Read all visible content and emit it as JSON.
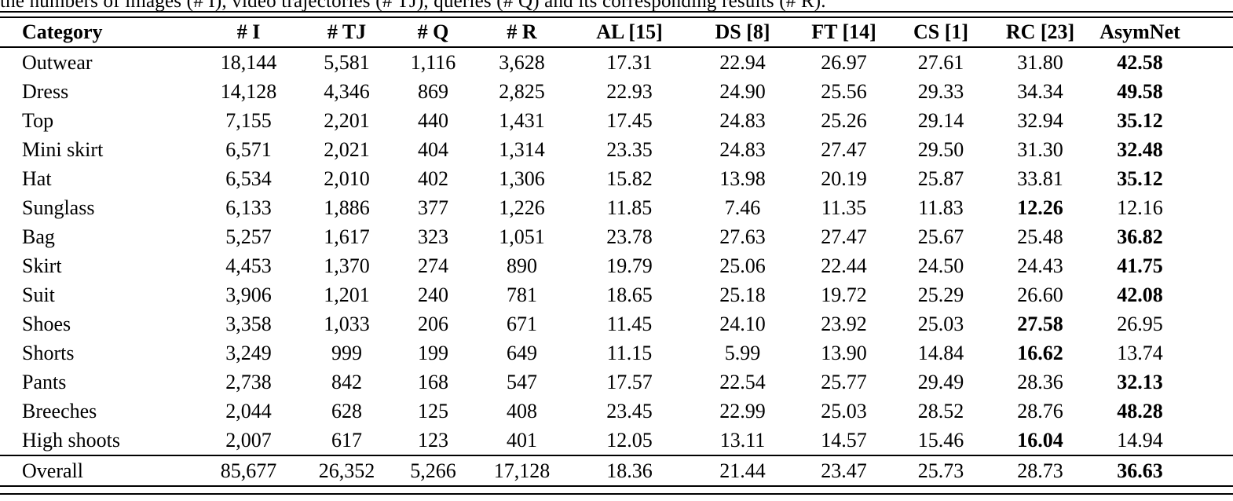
{
  "caption_fragment": "the numbers of images (# I), video trajectories (# TJ), queries (# Q) and its corresponding results (# R).",
  "table": {
    "columns": [
      "Category",
      "# I",
      "# TJ",
      "# Q",
      "# R",
      "AL [15]",
      "DS [8]",
      "FT [14]",
      "CS [1]",
      "RC [23]",
      "AsymNet"
    ],
    "rows": [
      {
        "category": "Outwear",
        "values": [
          "18,144",
          "5,581",
          "1,116",
          "3,628",
          "17.31",
          "22.94",
          "26.97",
          "27.61",
          "31.80",
          "42.58"
        ],
        "bold_index": 9
      },
      {
        "category": "Dress",
        "values": [
          "14,128",
          "4,346",
          "869",
          "2,825",
          "22.93",
          "24.90",
          "25.56",
          "29.33",
          "34.34",
          "49.58"
        ],
        "bold_index": 9
      },
      {
        "category": "Top",
        "values": [
          "7,155",
          "2,201",
          "440",
          "1,431",
          "17.45",
          "24.83",
          "25.26",
          "29.14",
          "32.94",
          "35.12"
        ],
        "bold_index": 9
      },
      {
        "category": "Mini skirt",
        "values": [
          "6,571",
          "2,021",
          "404",
          "1,314",
          "23.35",
          "24.83",
          "27.47",
          "29.50",
          "31.30",
          "32.48"
        ],
        "bold_index": 9
      },
      {
        "category": "Hat",
        "values": [
          "6,534",
          "2,010",
          "402",
          "1,306",
          "15.82",
          "13.98",
          "20.19",
          "25.87",
          "33.81",
          "35.12"
        ],
        "bold_index": 9
      },
      {
        "category": "Sunglass",
        "values": [
          "6,133",
          "1,886",
          "377",
          "1,226",
          "11.85",
          "7.46",
          "11.35",
          "11.83",
          "12.26",
          "12.16"
        ],
        "bold_index": 8
      },
      {
        "category": "Bag",
        "values": [
          "5,257",
          "1,617",
          "323",
          "1,051",
          "23.78",
          "27.63",
          "27.47",
          "25.67",
          "25.48",
          "36.82"
        ],
        "bold_index": 9
      },
      {
        "category": "Skirt",
        "values": [
          "4,453",
          "1,370",
          "274",
          "890",
          "19.79",
          "25.06",
          "22.44",
          "24.50",
          "24.43",
          "41.75"
        ],
        "bold_index": 9
      },
      {
        "category": "Suit",
        "values": [
          "3,906",
          "1,201",
          "240",
          "781",
          "18.65",
          "25.18",
          "19.72",
          "25.29",
          "26.60",
          "42.08"
        ],
        "bold_index": 9
      },
      {
        "category": "Shoes",
        "values": [
          "3,358",
          "1,033",
          "206",
          "671",
          "11.45",
          "24.10",
          "23.92",
          "25.03",
          "27.58",
          "26.95"
        ],
        "bold_index": 8
      },
      {
        "category": "Shorts",
        "values": [
          "3,249",
          "999",
          "199",
          "649",
          "11.15",
          "5.99",
          "13.90",
          "14.84",
          "16.62",
          "13.74"
        ],
        "bold_index": 8
      },
      {
        "category": "Pants",
        "values": [
          "2,738",
          "842",
          "168",
          "547",
          "17.57",
          "22.54",
          "25.77",
          "29.49",
          "28.36",
          "32.13"
        ],
        "bold_index": 9
      },
      {
        "category": "Breeches",
        "values": [
          "2,044",
          "628",
          "125",
          "408",
          "23.45",
          "22.99",
          "25.03",
          "28.52",
          "28.76",
          "48.28"
        ],
        "bold_index": 9
      },
      {
        "category": "High shoots",
        "values": [
          "2,007",
          "617",
          "123",
          "401",
          "12.05",
          "13.11",
          "14.57",
          "15.46",
          "16.04",
          "14.94"
        ],
        "bold_index": 8
      },
      {
        "category": "Overall",
        "values": [
          "85,677",
          "26,352",
          "5,266",
          "17,128",
          "18.36",
          "21.44",
          "23.47",
          "25.73",
          "28.73",
          "36.63"
        ],
        "bold_index": 9,
        "overall": true
      }
    ]
  },
  "colors": {
    "text": "#000000",
    "background": "#ffffff",
    "rule": "#000000"
  }
}
